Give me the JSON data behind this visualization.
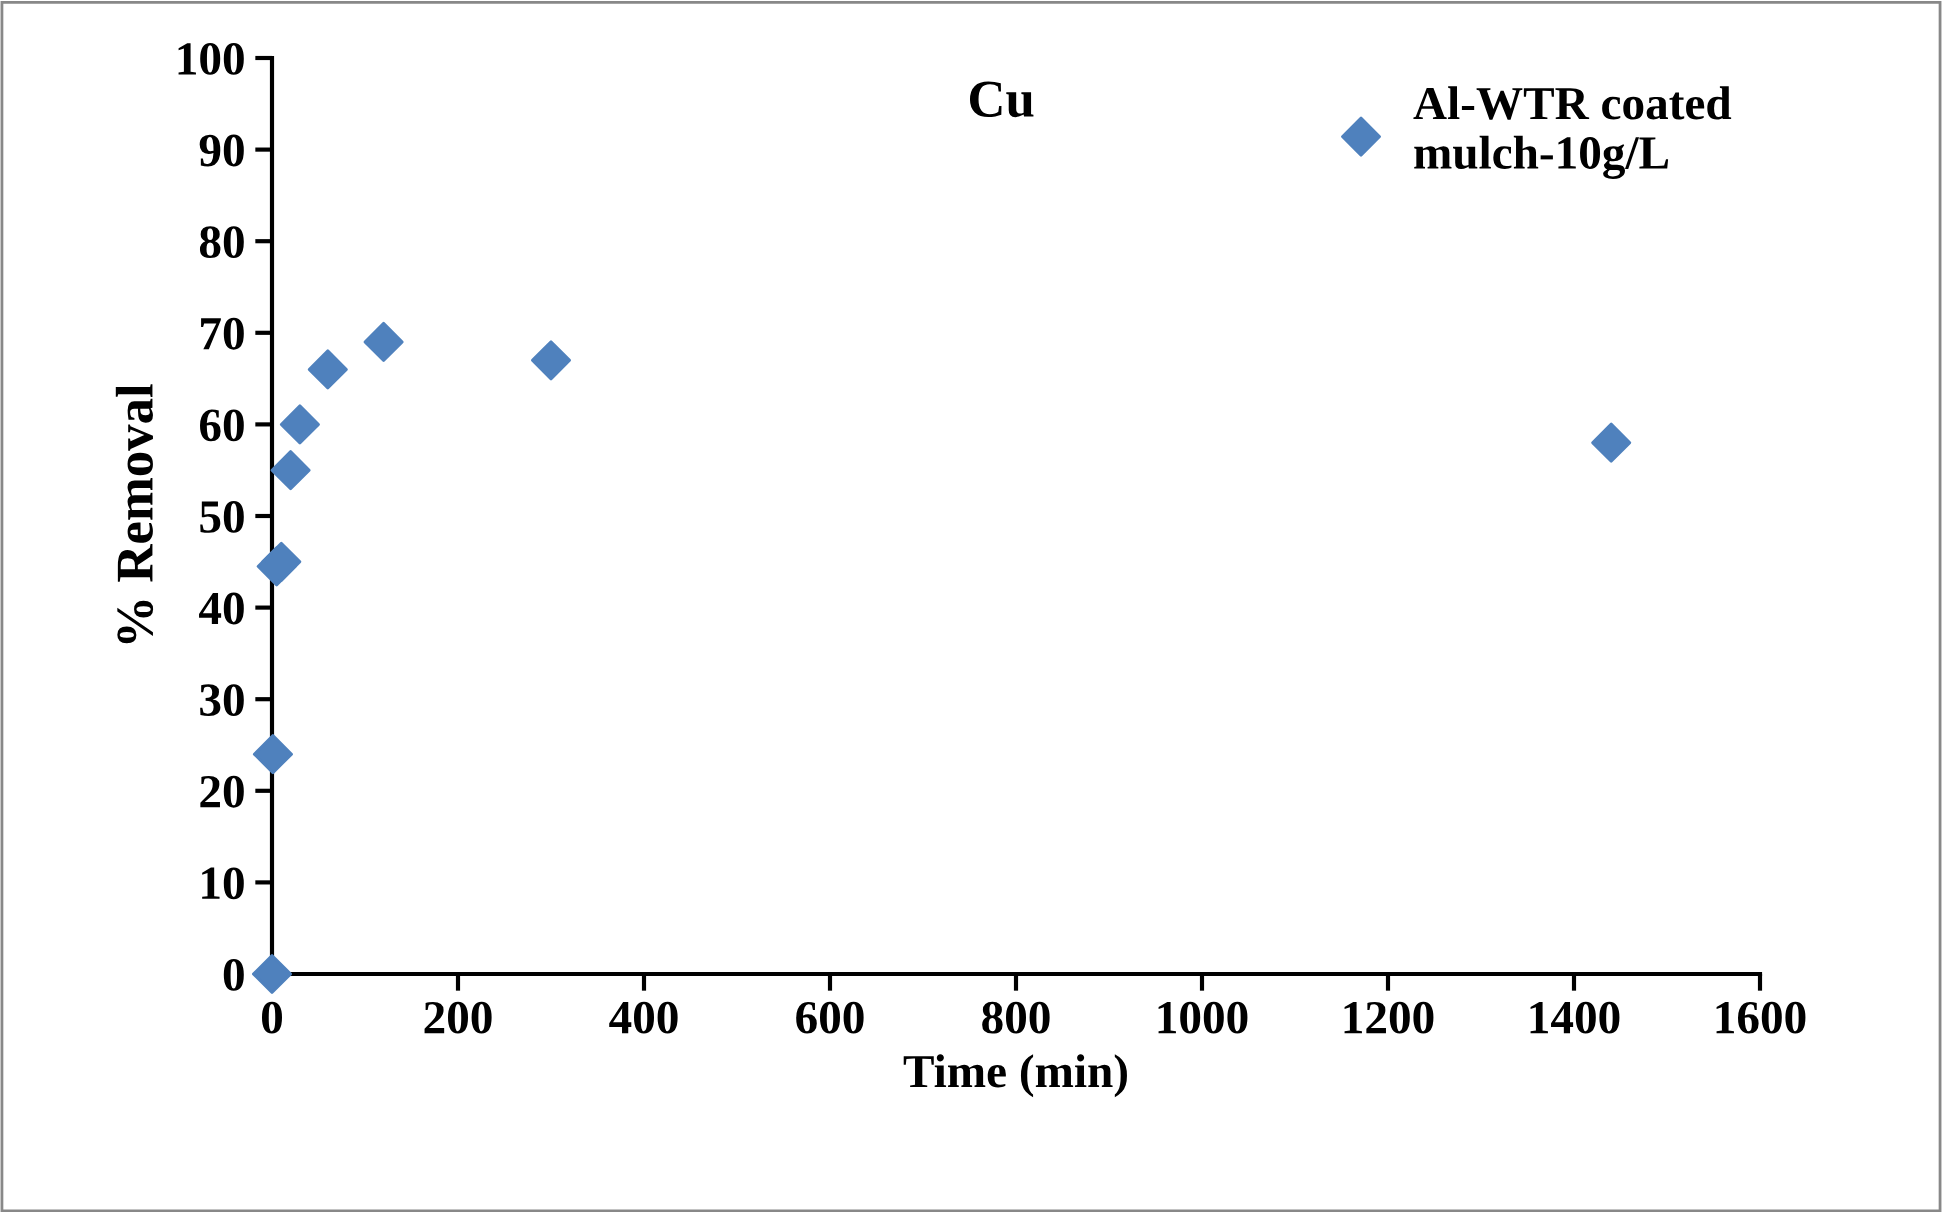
{
  "chart_data": {
    "type": "scatter",
    "title": "Cu",
    "xlabel": "Time (min)",
    "ylabel": "% Removal",
    "series": [
      {
        "name": "Al-WTR coated\nmulch-10g/L",
        "color": "#4f81bd",
        "x": [
          0,
          1,
          5,
          10,
          20,
          30,
          60,
          120,
          300,
          1440
        ],
        "values": [
          0,
          24,
          44.5,
          45,
          55,
          60,
          66,
          69,
          67,
          58
        ]
      }
    ],
    "xlim": [
      0,
      1600
    ],
    "xticks": [
      0,
      200,
      400,
      600,
      800,
      1000,
      1200,
      1400,
      1600
    ],
    "ylim": [
      0,
      100
    ],
    "yticks": [
      0,
      10,
      20,
      30,
      40,
      50,
      60,
      70,
      80,
      90,
      100
    ],
    "marker": "diamond",
    "grid": false,
    "legend": "top right"
  }
}
